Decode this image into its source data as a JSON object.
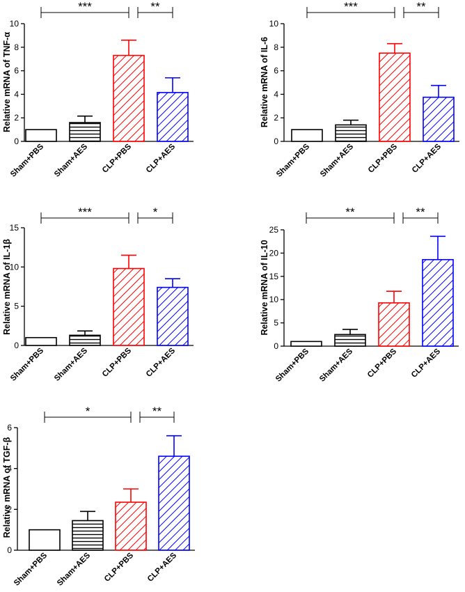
{
  "colors": {
    "Sham+PBS": "#000000",
    "Sham+AES": "#000000",
    "CLP+PBS": "#ff0000",
    "CLP+AES": "#0000ff"
  },
  "chart_data": [
    {
      "type": "bar",
      "ylabel": "Relative mRNA of TNF-α",
      "categories": [
        "Sham+PBS",
        "Sham+AES",
        "CLP+PBS",
        "CLP+AES"
      ],
      "values": [
        1.0,
        1.6,
        7.3,
        4.15
      ],
      "errors": [
        0,
        0.55,
        1.3,
        1.25
      ],
      "patterns": [
        "none",
        "horizontal",
        "diagonal",
        "diagonal"
      ],
      "ylim": [
        0,
        10
      ],
      "yticks": [
        0,
        2,
        4,
        6,
        8,
        10
      ],
      "ytick_labels": [
        "0",
        "2",
        "4",
        "6",
        "8",
        "10"
      ],
      "significance": [
        {
          "from": "Sham+PBS",
          "to": "CLP+PBS",
          "label": "***"
        },
        {
          "from": "CLP+PBS",
          "to": "CLP+AES",
          "label": "**"
        }
      ]
    },
    {
      "type": "bar",
      "ylabel": "Relative mRNA of IL-6",
      "categories": [
        "Sham+PBS",
        "Sham+AES",
        "CLP+PBS",
        "CLP+AES"
      ],
      "values": [
        1.0,
        1.4,
        7.5,
        3.75
      ],
      "errors": [
        0,
        0.4,
        0.8,
        1.0
      ],
      "patterns": [
        "none",
        "horizontal",
        "diagonal",
        "diagonal"
      ],
      "ylim": [
        0,
        10
      ],
      "yticks": [
        0,
        2,
        4,
        6,
        8,
        10
      ],
      "ytick_labels": [
        "0",
        "2",
        "4",
        "6",
        "8",
        "10"
      ],
      "significance": [
        {
          "from": "Sham+PBS",
          "to": "CLP+PBS",
          "label": "***"
        },
        {
          "from": "CLP+PBS",
          "to": "CLP+AES",
          "label": "**"
        }
      ]
    },
    {
      "type": "bar",
      "ylabel": "Relative mRNA of IL-1β",
      "categories": [
        "Sham+PBS",
        "Sham+AES",
        "CLP+PBS",
        "CLP+AES"
      ],
      "values": [
        1.0,
        1.3,
        9.8,
        7.4
      ],
      "errors": [
        0,
        0.55,
        1.7,
        1.1
      ],
      "patterns": [
        "none",
        "horizontal",
        "diagonal",
        "diagonal"
      ],
      "ylim": [
        0,
        15
      ],
      "yticks": [
        0,
        5,
        10,
        15
      ],
      "ytick_labels": [
        "0",
        "5",
        "10",
        "15"
      ],
      "significance": [
        {
          "from": "Sham+PBS",
          "to": "CLP+PBS",
          "label": "***"
        },
        {
          "from": "CLP+PBS",
          "to": "CLP+AES",
          "label": "*"
        }
      ]
    },
    {
      "type": "bar",
      "ylabel": "Relative mRNA of IL-10",
      "categories": [
        "Sham+PBS",
        "Sham+AES",
        "CLP+PBS",
        "CLP+AES"
      ],
      "values": [
        1.0,
        2.5,
        9.3,
        18.6
      ],
      "errors": [
        0,
        1.1,
        2.5,
        5.0
      ],
      "patterns": [
        "none",
        "horizontal",
        "diagonal",
        "diagonal"
      ],
      "ylim": [
        0,
        25
      ],
      "yticks": [
        0,
        5,
        10,
        15,
        20,
        25
      ],
      "ytick_labels": [
        "0",
        "5",
        "10",
        "15",
        "20",
        "25"
      ],
      "significance": [
        {
          "from": "Sham+PBS",
          "to": "CLP+PBS",
          "label": "**"
        },
        {
          "from": "CLP+PBS",
          "to": "CLP+AES",
          "label": "**"
        }
      ]
    },
    {
      "type": "bar",
      "ylabel": "Relative mRNA of TGF-β",
      "categories": [
        "Sham+PBS",
        "Sham+AES",
        "CLP+PBS",
        "CLP+AES"
      ],
      "values": [
        1.0,
        1.45,
        2.35,
        4.6
      ],
      "errors": [
        0,
        0.45,
        0.65,
        1.0
      ],
      "patterns": [
        "none",
        "horizontal",
        "diagonal",
        "diagonal"
      ],
      "ylim": [
        0,
        6
      ],
      "yticks": [
        0,
        2,
        4,
        6
      ],
      "ytick_labels": [
        "0",
        "2",
        "4",
        "6"
      ],
      "significance": [
        {
          "from": "Sham+PBS",
          "to": "CLP+PBS",
          "label": "*"
        },
        {
          "from": "CLP+PBS",
          "to": "CLP+AES",
          "label": "**"
        }
      ]
    }
  ]
}
